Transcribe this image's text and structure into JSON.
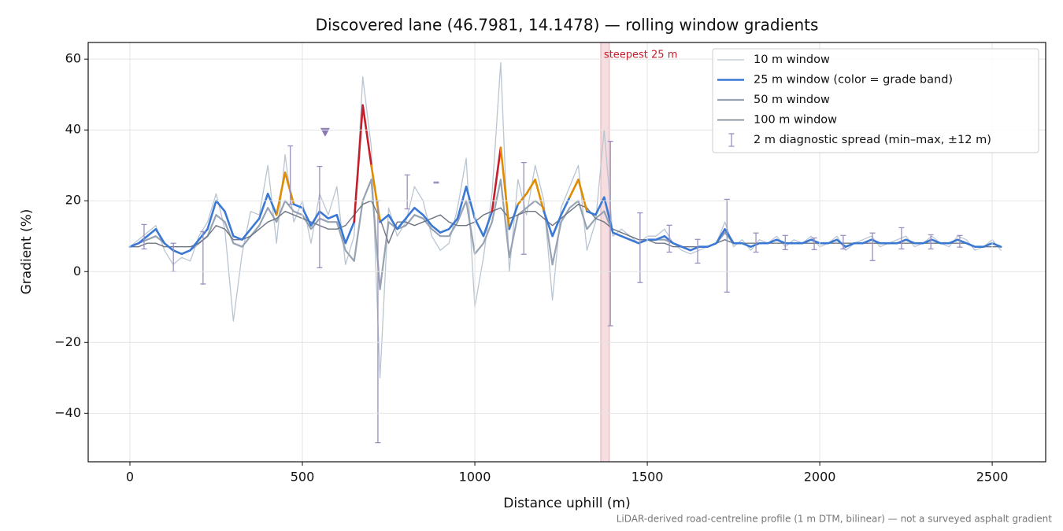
{
  "chart_data": {
    "type": "line",
    "title": "Discovered lane (46.7981, 14.1478) — rolling window gradients",
    "x_label": "Distance uphill (m)",
    "y_label": "Gradient (%)",
    "footnote": "LiDAR-derived road-centreline profile (1 m DTM, bilinear) — not a surveyed asphalt gradient",
    "xlim": [
      -121,
      2655
    ],
    "ylim": [
      -53.7,
      64.7
    ],
    "xticks": [
      0,
      500,
      1000,
      1500,
      2000,
      2500
    ],
    "yticks": [
      {
        "value": -40,
        "label": "−40"
      },
      {
        "value": -20,
        "label": "−20"
      },
      0,
      20,
      40,
      60
    ],
    "grid": true,
    "legend": "upper right",
    "x": [
      0,
      25,
      50,
      75,
      100,
      125,
      150,
      175,
      200,
      225,
      250,
      275,
      300,
      325,
      350,
      375,
      400,
      425,
      450,
      475,
      500,
      525,
      550,
      575,
      600,
      625,
      650,
      675,
      700,
      725,
      750,
      775,
      800,
      825,
      850,
      875,
      900,
      925,
      950,
      975,
      1000,
      1025,
      1050,
      1075,
      1100,
      1125,
      1150,
      1175,
      1200,
      1225,
      1250,
      1275,
      1300,
      1325,
      1350,
      1375,
      1400,
      1425,
      1450,
      1475,
      1500,
      1525,
      1550,
      1575,
      1600,
      1625,
      1650,
      1675,
      1700,
      1725,
      1750,
      1775,
      1800,
      1825,
      1850,
      1875,
      1900,
      1925,
      1950,
      1975,
      2000,
      2025,
      2050,
      2075,
      2100,
      2125,
      2150,
      2175,
      2200,
      2225,
      2250,
      2275,
      2300,
      2325,
      2350,
      2375,
      2400,
      2425,
      2450,
      2475,
      2500,
      2525
    ],
    "series": [
      {
        "name": "10 m window",
        "color": "#b9c5d1",
        "width": 1.3,
        "values": [
          7,
          9,
          11,
          13,
          6,
          2,
          4,
          3,
          10,
          14,
          22,
          12,
          -14,
          5,
          17,
          16,
          30,
          8,
          33,
          14,
          20,
          8,
          22,
          16,
          24,
          2,
          10,
          55,
          35,
          -30,
          18,
          10,
          14,
          24,
          20,
          10,
          6,
          8,
          18,
          32,
          -10,
          4,
          22,
          59,
          0,
          26,
          16,
          30,
          20,
          -8,
          18,
          24,
          30,
          6,
          14,
          40,
          10,
          12,
          10,
          8,
          10,
          10,
          12,
          8,
          6,
          5,
          6,
          7,
          8,
          14,
          7,
          9,
          6,
          9,
          8,
          10,
          7,
          9,
          8,
          10,
          7,
          8,
          10,
          6,
          8,
          9,
          10,
          7,
          8,
          9,
          10,
          7,
          8,
          10,
          8,
          7,
          10,
          9,
          6,
          7,
          9,
          6
        ]
      },
      {
        "name": "25 m window (color = grade band)",
        "color": "#3a78d4",
        "width": 2.6,
        "bands": [
          {
            "min": 20,
            "color": "#e08c00"
          },
          {
            "min": 25,
            "color": "#c41e2a"
          }
        ],
        "values": [
          7,
          8,
          10,
          12,
          8,
          6,
          5,
          6,
          9,
          12,
          20,
          17,
          10,
          9,
          12,
          15,
          22,
          16,
          28,
          19,
          18,
          13,
          17,
          15,
          16,
          8,
          14,
          47,
          30,
          14,
          16,
          12,
          15,
          18,
          16,
          13,
          11,
          12,
          15,
          24,
          15,
          10,
          17,
          35,
          12,
          19,
          22,
          26,
          17,
          10,
          16,
          21,
          26,
          17,
          16,
          21,
          11,
          10,
          9,
          8,
          9,
          9,
          10,
          8,
          7,
          6,
          7,
          7,
          8,
          12,
          8,
          8,
          7,
          8,
          8,
          9,
          8,
          8,
          8,
          9,
          8,
          8,
          9,
          7,
          8,
          8,
          9,
          8,
          8,
          8,
          9,
          8,
          8,
          9,
          8,
          8,
          9,
          8,
          7,
          7,
          8,
          7
        ]
      },
      {
        "name": "50 m window",
        "color": "#97a3b2",
        "width": 2.2,
        "values": [
          7,
          8,
          9,
          10,
          8,
          6,
          5,
          6,
          8,
          10,
          16,
          14,
          8,
          7,
          10,
          13,
          18,
          14,
          20,
          17,
          16,
          12,
          15,
          14,
          14,
          6,
          3,
          20,
          26,
          -5,
          14,
          12,
          13,
          16,
          15,
          12,
          10,
          10,
          14,
          20,
          5,
          8,
          14,
          26,
          4,
          16,
          18,
          20,
          18,
          2,
          14,
          18,
          20,
          12,
          15,
          17,
          11,
          10,
          9,
          8,
          9,
          9,
          9,
          8,
          7,
          6,
          7,
          7,
          8,
          11,
          8,
          8,
          7,
          8,
          8,
          9,
          8,
          8,
          8,
          9,
          8,
          8,
          9,
          7,
          8,
          8,
          9,
          8,
          8,
          8,
          9,
          8,
          8,
          9,
          8,
          8,
          9,
          8,
          7,
          7,
          8,
          7
        ]
      },
      {
        "name": "100 m window",
        "color": "#6f7784",
        "width": 1.4,
        "values": [
          7,
          7,
          8,
          8,
          7,
          7,
          7,
          7,
          8,
          10,
          13,
          12,
          9,
          9,
          10,
          12,
          14,
          15,
          17,
          16,
          15,
          14,
          13,
          12,
          12,
          13,
          16,
          19,
          20,
          15,
          8,
          14,
          14,
          13,
          14,
          15,
          16,
          14,
          13,
          13,
          14,
          16,
          17,
          18,
          15,
          16,
          17,
          17,
          15,
          13,
          15,
          17,
          19,
          18,
          15,
          14,
          12,
          11,
          10,
          9,
          9,
          8,
          8,
          7,
          7,
          7,
          7,
          7,
          8,
          9,
          8,
          8,
          8,
          8,
          8,
          8,
          8,
          8,
          8,
          8,
          8,
          8,
          8,
          8,
          8,
          8,
          8,
          8,
          8,
          8,
          8,
          8,
          8,
          8,
          8,
          8,
          8,
          8,
          7,
          7,
          7,
          7
        ]
      }
    ],
    "spread": {
      "name": "2 m diagnostic spread (min–max, ±12 m)",
      "color": "#9a8fc0",
      "x": [
        41,
        126,
        212,
        465,
        550,
        719,
        804,
        888,
        1142,
        1393,
        1479,
        1564,
        1646,
        1731,
        1815,
        1900,
        1984,
        2068,
        2153,
        2237,
        2322,
        2406
      ],
      "low": [
        6.4,
        0,
        -3.5,
        19,
        1.1,
        -48.3,
        17.7,
        25,
        4.9,
        -15.3,
        -3.1,
        5.5,
        2.4,
        -5.8,
        5.5,
        6.2,
        6.2,
        6.4,
        3.1,
        6.4,
        6.4,
        6.9
      ],
      "high": [
        13.3,
        8,
        11.3,
        35.5,
        29.7,
        20,
        27.3,
        25.3,
        30.8,
        36.8,
        16.6,
        13.1,
        9.1,
        20.4,
        10.9,
        10.2,
        9.5,
        10.2,
        10.9,
        12.4,
        10.4,
        10.2
      ]
    },
    "peak_marker": {
      "x": 566,
      "y": 39,
      "color": "#8a78b0"
    },
    "highlight": {
      "label": "steepest 25 m",
      "x": [
        1365,
        1390
      ],
      "color": "#c41e2a"
    }
  }
}
